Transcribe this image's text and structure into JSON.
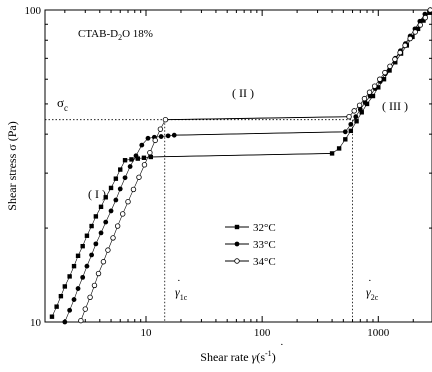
{
  "chart_data": {
    "type": "scatter",
    "xscale": "log",
    "yscale": "log",
    "xlim": [
      1.35,
      2900
    ],
    "ylim": [
      10,
      100
    ],
    "xticks": [
      {
        "value": 10,
        "label": "10"
      },
      {
        "value": 100,
        "label": "100"
      },
      {
        "value": 1000,
        "label": "1000"
      }
    ],
    "yticks": [
      {
        "value": 10,
        "label": "10"
      },
      {
        "value": 100,
        "label": "100"
      }
    ],
    "xlabel": {
      "main": "Shear rate ",
      "symbol": "γ",
      "unit_pre": "(s",
      "unit_sup": "-1",
      "unit_post": ")"
    },
    "ylabel": "Shear stress σ (Pa)",
    "sample_label": {
      "pre": "CTAB-D",
      "sub": "2",
      "post": "O  18%"
    },
    "region_labels": [
      "( I )",
      "( II )",
      "( III )"
    ],
    "sigma_label": {
      "main": "σ",
      "sub": "c"
    },
    "gamma1_label": {
      "main": "γ",
      "sub": "1c"
    },
    "gamma2_label": {
      "main": "γ",
      "sub": "2c"
    },
    "reference_lines": {
      "sigma_c": 44.5,
      "gamma_1c": 14.5,
      "gamma_2c": 600
    },
    "series": [
      {
        "name": "32°C",
        "marker": "filled-square",
        "x": [
          1.55,
          1.7,
          1.85,
          2.0,
          2.2,
          2.4,
          2.6,
          2.85,
          3.1,
          3.4,
          3.7,
          4.1,
          4.5,
          5.0,
          5.5,
          6.0,
          6.6,
          7.5,
          8.5,
          9.6,
          11.0,
          400,
          460,
          520,
          580,
          650,
          720,
          800,
          900,
          1000,
          1120,
          1250,
          1400,
          1570,
          1760,
          1970,
          2200,
          2450,
          2750
        ],
        "y": [
          10.4,
          11.2,
          12.1,
          13.0,
          14.0,
          15.1,
          16.3,
          17.5,
          18.9,
          20.3,
          21.8,
          23.4,
          25.1,
          26.9,
          28.8,
          30.8,
          33.0,
          33.2,
          33.4,
          33.6,
          33.8,
          34.7,
          36.0,
          38.5,
          41.0,
          44.0,
          47.0,
          50.0,
          53.0,
          56.5,
          60.0,
          64.0,
          68.0,
          72.5,
          77.0,
          82.0,
          87.0,
          92.5,
          98.0
        ]
      },
      {
        "name": "33°C",
        "marker": "filled-circle",
        "x": [
          2.0,
          2.2,
          2.4,
          2.6,
          2.85,
          3.1,
          3.4,
          3.7,
          4.1,
          4.5,
          5.0,
          5.5,
          6.0,
          6.6,
          7.3,
          8.2,
          9.2,
          10.4,
          11.8,
          13.5,
          15.5,
          17.5,
          520,
          580,
          640,
          700,
          770,
          850,
          940,
          1040,
          1150,
          1270,
          1400,
          1550,
          1710,
          1880,
          2070,
          2280,
          2520,
          2780
        ],
        "y": [
          10.0,
          10.9,
          11.8,
          12.8,
          13.9,
          15.1,
          16.4,
          17.8,
          19.3,
          20.9,
          22.7,
          24.6,
          26.7,
          29.0,
          31.5,
          34.1,
          36.9,
          38.8,
          39.1,
          39.3,
          39.5,
          39.7,
          40.7,
          43.0,
          45.5,
          48.0,
          50.5,
          53.0,
          56.0,
          59.0,
          62.5,
          66.0,
          70.0,
          74.0,
          78.0,
          82.5,
          87.0,
          92.0,
          97.0,
          102.0
        ]
      },
      {
        "name": "34°C",
        "marker": "open-circle",
        "x": [
          2.75,
          3.0,
          3.3,
          3.6,
          3.9,
          4.3,
          4.7,
          5.2,
          5.7,
          6.3,
          7.0,
          7.8,
          8.7,
          9.7,
          10.8,
          12.0,
          13.3,
          14.7,
          560,
          620,
          690,
          760,
          840,
          930,
          1030,
          1140,
          1260,
          1390,
          1540,
          1700,
          1880,
          2080,
          2300,
          2540,
          2800
        ],
        "y": [
          10.1,
          11.0,
          12.0,
          13.1,
          14.3,
          15.6,
          17.0,
          18.6,
          20.3,
          22.2,
          24.3,
          26.6,
          29.1,
          31.9,
          34.9,
          38.2,
          41.5,
          44.5,
          45.5,
          47.5,
          49.5,
          52.0,
          54.5,
          57.0,
          60.0,
          63.0,
          66.0,
          69.5,
          73.0,
          77.0,
          81.0,
          85.0,
          89.5,
          94.5,
          100.0
        ]
      }
    ],
    "legend_position": "center"
  }
}
